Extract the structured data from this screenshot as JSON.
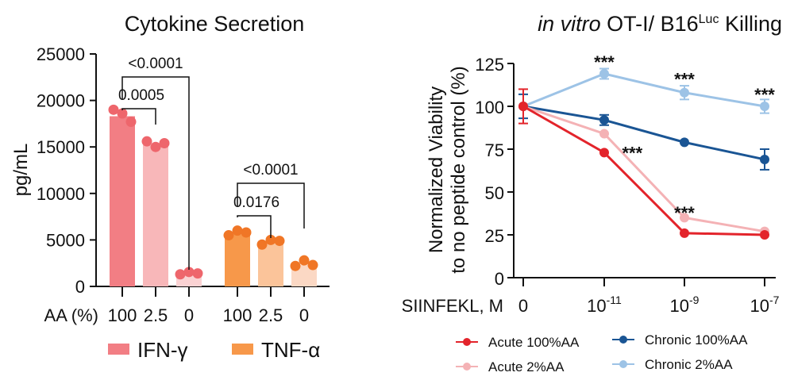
{
  "chart_data": [
    {
      "type": "bar",
      "title": "Cytokine Secretion",
      "ylabel": "pg/mL",
      "xlabel": "AA (%)",
      "ylim": [
        0,
        25000
      ],
      "yticks": [
        0,
        5000,
        10000,
        15000,
        20000,
        25000
      ],
      "groups": [
        {
          "name": "IFN-γ",
          "categories": [
            "100",
            "2.5",
            "0"
          ],
          "values": [
            18300,
            15200,
            1400
          ],
          "points": [
            [
              19000,
              18600,
              17700
            ],
            [
              15600,
              15000,
              15400
            ],
            [
              1300,
              1550,
              1400
            ]
          ],
          "bar_colors": [
            "#F27E84",
            "#F8B7B9",
            "#FAD2D3"
          ],
          "point_color": "#EE666C"
        },
        {
          "name": "TNF-α",
          "categories": [
            "100",
            "2.5",
            "0"
          ],
          "values": [
            5600,
            4800,
            2300
          ],
          "points": [
            [
              5500,
              6000,
              5800
            ],
            [
              4500,
              5000,
              4900
            ],
            [
              2200,
              2800,
              2300
            ]
          ],
          "bar_colors": [
            "#F7984A",
            "#FBC49A",
            "#FBD8C4"
          ],
          "point_color": "#F07626"
        }
      ],
      "comparisons": [
        {
          "group": 0,
          "from": 0,
          "to": 2,
          "label": "<0.0001"
        },
        {
          "group": 0,
          "from": 0,
          "to": 1,
          "label": "0.0005"
        },
        {
          "group": 1,
          "from": 0,
          "to": 2,
          "label": "<0.0001"
        },
        {
          "group": 1,
          "from": 0,
          "to": 1,
          "label": "0.0176"
        }
      ],
      "legend": [
        "IFN-γ",
        "TNF-α"
      ],
      "legend_position": "bottom"
    },
    {
      "type": "line",
      "title_italic": "in vitro",
      "title_main": " OT-I/ B16",
      "title_sup": "Luc",
      "title_tail": " Killing",
      "ylabel_line1": "Normalized Viability",
      "ylabel_line2": "to no peptide control (%)",
      "xlabel": "SIINFEKL, M",
      "ylim": [
        0,
        125
      ],
      "yticks": [
        0,
        25,
        50,
        75,
        100,
        125
      ],
      "x": [
        {
          "base": "0",
          "exp": ""
        },
        {
          "base": "10",
          "exp": "-11"
        },
        {
          "base": "10",
          "exp": "-9"
        },
        {
          "base": "10",
          "exp": "-7"
        }
      ],
      "series": [
        {
          "name": "Acute 100%AA",
          "color": "#E3242B",
          "values": [
            100,
            73,
            26,
            25
          ],
          "err": [
            10,
            0,
            0,
            0
          ]
        },
        {
          "name": "Acute 2%AA",
          "color": "#F4B2B5",
          "values": [
            100,
            84,
            35,
            27
          ],
          "err": [
            0,
            0,
            0,
            0
          ]
        },
        {
          "name": "Chronic 100%AA",
          "color": "#1A5594",
          "values": [
            100,
            92,
            79,
            69
          ],
          "err": [
            7,
            3,
            0,
            6
          ]
        },
        {
          "name": "Chronic 2%AA",
          "color": "#9DC3E6",
          "values": [
            100,
            119,
            108,
            100
          ],
          "err": [
            0,
            3,
            4,
            4
          ]
        }
      ],
      "annotations": [
        {
          "x_index": 1,
          "y": 126,
          "text": "***"
        },
        {
          "x_index": 2,
          "y": 116,
          "text": "***"
        },
        {
          "x_index": 3,
          "y": 107,
          "text": "***"
        },
        {
          "x_index": 1.35,
          "y": 73,
          "text": "***"
        },
        {
          "x_index": 2,
          "y": 38,
          "text": "***"
        }
      ],
      "legend": [
        "Acute 100%AA",
        "Chronic 100%AA",
        "Acute 2%AA",
        "Chronic 2%AA"
      ],
      "legend_position": "bottom"
    }
  ]
}
